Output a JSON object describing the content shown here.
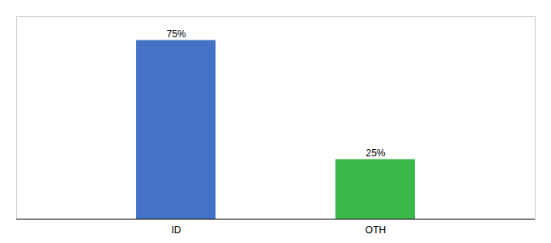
{
  "chart_data": {
    "type": "bar",
    "categories": [
      "ID",
      "OTH"
    ],
    "values": [
      75,
      25
    ],
    "value_labels": [
      "75%",
      "25%"
    ],
    "colors": [
      "#4472c4",
      "#3cb84a"
    ],
    "ylim": [
      0,
      85
    ],
    "data_labels": true,
    "tick_labels": "x"
  }
}
